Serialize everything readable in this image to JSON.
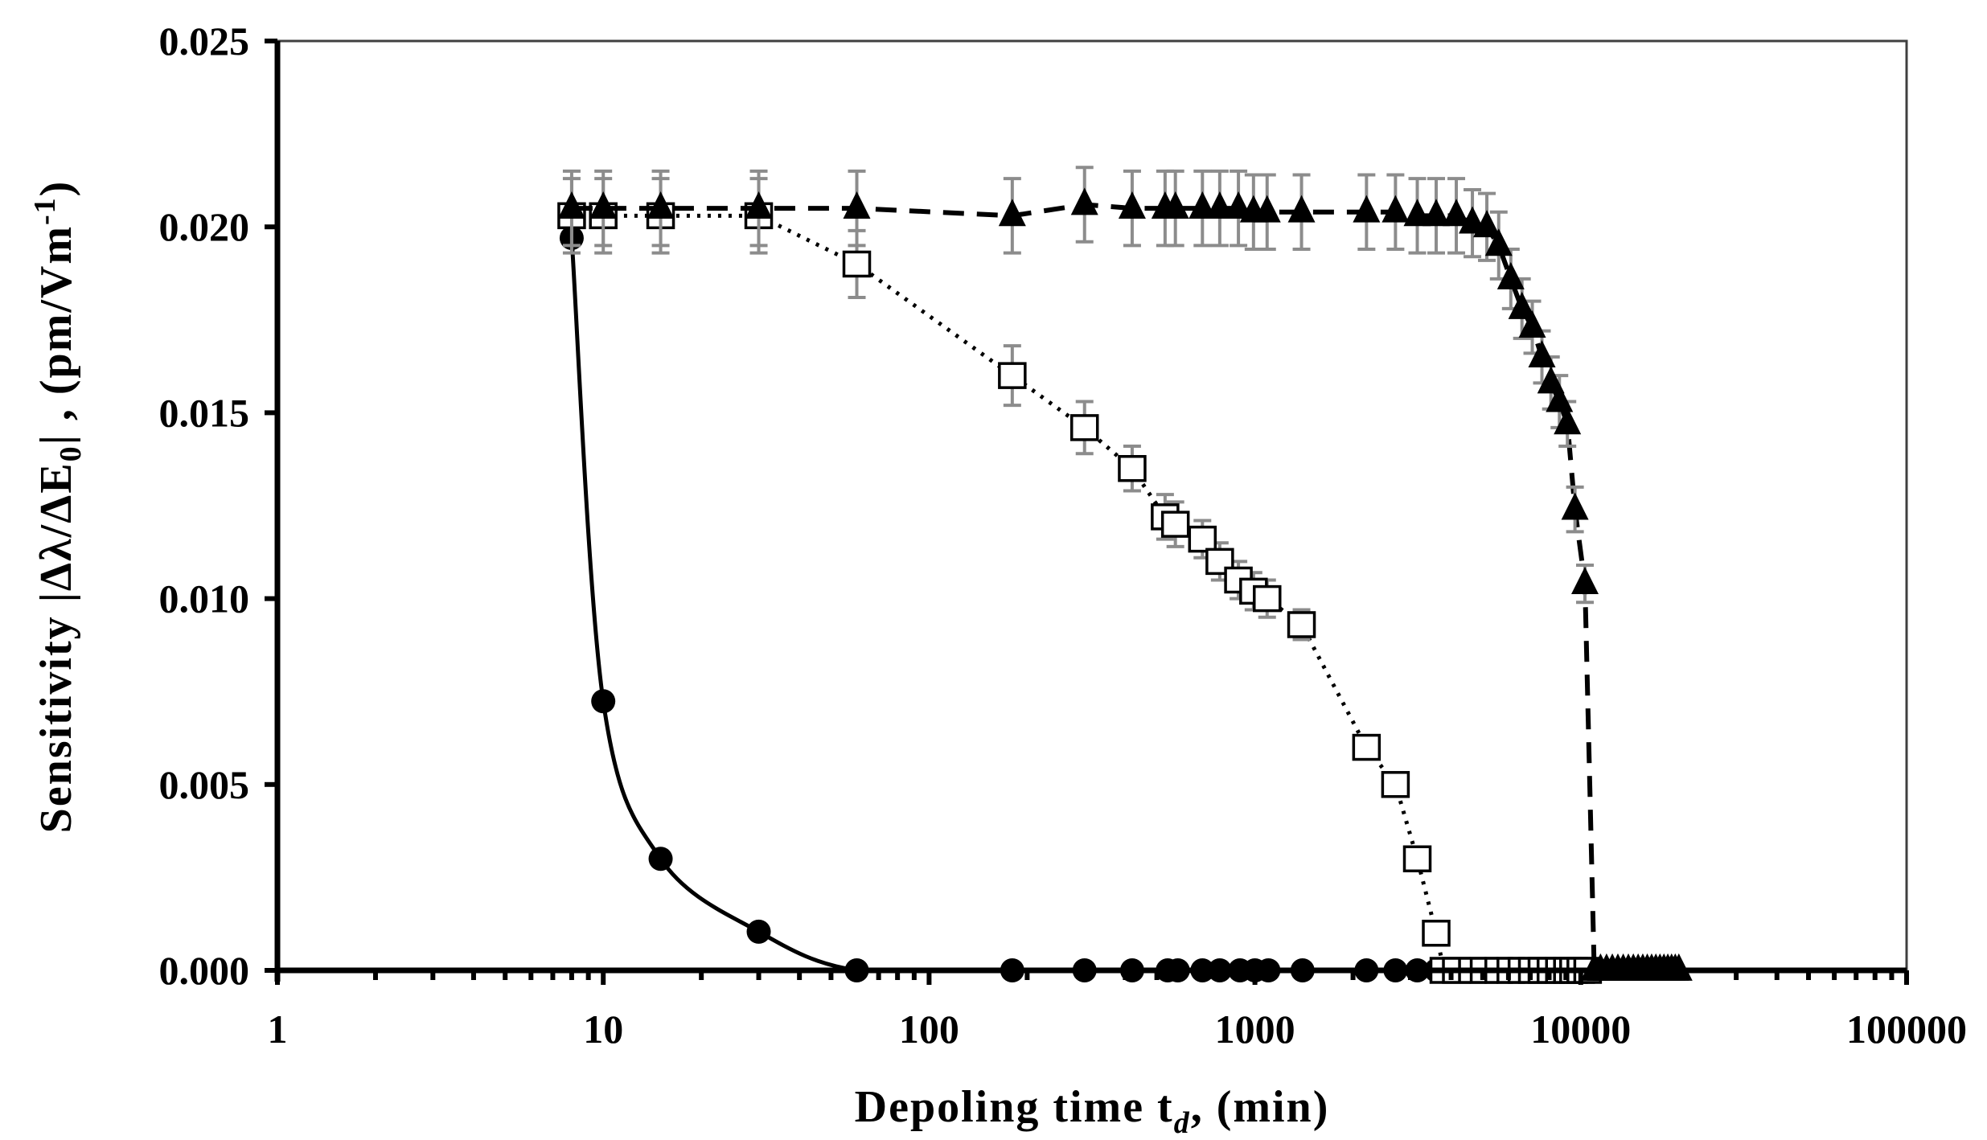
{
  "chart_data": {
    "type": "scatter",
    "title": "",
    "xlabel": "Depoling time t_d, (min)",
    "ylabel": "Sensitivity |Δλ/ΔE0| , (pm/Vm-1)",
    "xscale": "log",
    "xlim": [
      1,
      100000
    ],
    "ylim": [
      0,
      0.025
    ],
    "grid": false,
    "legend": "none",
    "x_ticks": [
      "1",
      "10",
      "100",
      "1000",
      "10000",
      "100000"
    ],
    "y_ticks": [
      "0.000",
      "0.005",
      "0.010",
      "0.015",
      "0.020",
      "0.025"
    ],
    "series": [
      {
        "name": "circles (solid line)",
        "marker": "filled-circle",
        "line": "solid",
        "error_bars": false,
        "points": [
          [
            8,
            0.0197
          ],
          [
            10,
            0.00724
          ],
          [
            15,
            0.003
          ],
          [
            30,
            0.00104
          ],
          [
            60,
            0.0
          ],
          [
            180,
            0.0
          ],
          [
            300,
            0.0
          ],
          [
            420,
            0.0
          ],
          [
            540,
            0.0
          ],
          [
            580,
            0.0
          ],
          [
            690,
            0.0
          ],
          [
            780,
            0.0
          ],
          [
            900,
            0.0
          ],
          [
            1000,
            0.0
          ],
          [
            1100,
            0.0
          ],
          [
            1400,
            0.0
          ],
          [
            2200,
            0.0
          ],
          [
            2700,
            0.0
          ],
          [
            3150,
            0.0
          ],
          [
            3600,
            0.0
          ]
        ]
      },
      {
        "name": "open squares (dotted line)",
        "marker": "open-square",
        "line": "dotted",
        "error_bars": true,
        "points": [
          [
            8,
            0.0203,
            0.001
          ],
          [
            10,
            0.0203,
            0.001
          ],
          [
            15,
            0.0203,
            0.001
          ],
          [
            30,
            0.0203,
            0.001
          ],
          [
            60,
            0.019,
            0.0009
          ],
          [
            180,
            0.016,
            0.0008
          ],
          [
            300,
            0.0146,
            0.0007
          ],
          [
            420,
            0.0135,
            0.0006
          ],
          [
            530,
            0.0122,
            0.0006
          ],
          [
            570,
            0.012,
            0.0006
          ],
          [
            690,
            0.0116,
            0.0005
          ],
          [
            780,
            0.011,
            0.0005
          ],
          [
            890,
            0.0105,
            0.0005
          ],
          [
            990,
            0.0102,
            0.0005
          ],
          [
            1090,
            0.01,
            0.0005
          ],
          [
            1390,
            0.0093,
            0.0004
          ],
          [
            2200,
            0.006,
            0.0
          ],
          [
            2700,
            0.005,
            0.0
          ],
          [
            3150,
            0.003,
            0.0
          ],
          [
            3600,
            0.001,
            0.0
          ],
          [
            3800,
            0.0,
            0.0
          ],
          [
            4150,
            0.0,
            0.0
          ],
          [
            4650,
            0.0,
            0.0
          ],
          [
            5050,
            0.0,
            0.0
          ],
          [
            5600,
            0.0,
            0.0
          ],
          [
            6100,
            0.0,
            0.0
          ],
          [
            6600,
            0.0,
            0.0
          ],
          [
            7100,
            0.0,
            0.0
          ],
          [
            7600,
            0.0,
            0.0
          ],
          [
            8100,
            0.0,
            0.0
          ],
          [
            8600,
            0.0,
            0.0
          ],
          [
            9100,
            0.0,
            0.0
          ],
          [
            9500,
            0.0,
            0.0
          ],
          [
            10000,
            0.0,
            0.0
          ],
          [
            10500,
            0.0,
            0.0
          ]
        ]
      },
      {
        "name": "filled triangles (dashed line)",
        "marker": "filled-triangle",
        "line": "dashed",
        "error_bars": true,
        "points": [
          [
            8,
            0.0205,
            0.001
          ],
          [
            10,
            0.0205,
            0.001
          ],
          [
            15,
            0.0205,
            0.001
          ],
          [
            30,
            0.0205,
            0.001
          ],
          [
            60,
            0.0205,
            0.001
          ],
          [
            180,
            0.0203,
            0.001
          ],
          [
            300,
            0.0206,
            0.001
          ],
          [
            420,
            0.0205,
            0.001
          ],
          [
            530,
            0.0205,
            0.001
          ],
          [
            570,
            0.0205,
            0.001
          ],
          [
            690,
            0.0205,
            0.001
          ],
          [
            780,
            0.0205,
            0.001
          ],
          [
            890,
            0.0205,
            0.001
          ],
          [
            990,
            0.0204,
            0.001
          ],
          [
            1090,
            0.0204,
            0.001
          ],
          [
            1390,
            0.0204,
            0.001
          ],
          [
            2200,
            0.0204,
            0.001
          ],
          [
            2700,
            0.0204,
            0.001
          ],
          [
            3150,
            0.0203,
            0.001
          ],
          [
            3600,
            0.0203,
            0.001
          ],
          [
            4150,
            0.0203,
            0.001
          ],
          [
            4650,
            0.0201,
            0.0009
          ],
          [
            5150,
            0.02,
            0.0009
          ],
          [
            5600,
            0.0195,
            0.0009
          ],
          [
            6100,
            0.0186,
            0.0008
          ],
          [
            6600,
            0.0178,
            0.0008
          ],
          [
            7100,
            0.0173,
            0.0007
          ],
          [
            7600,
            0.0165,
            0.0007
          ],
          [
            8100,
            0.0158,
            0.0007
          ],
          [
            8600,
            0.0153,
            0.0007
          ],
          [
            9100,
            0.0147,
            0.0006
          ],
          [
            9600,
            0.0124,
            0.0006
          ],
          [
            10300,
            0.0104,
            0.0005
          ],
          [
            11000,
            0.0,
            0.0
          ],
          [
            11500,
            0.0,
            0.0
          ],
          [
            12000,
            0.0,
            0.0
          ],
          [
            12500,
            0.0,
            0.0
          ],
          [
            13000,
            0.0,
            0.0
          ],
          [
            13500,
            0.0,
            0.0
          ],
          [
            14000,
            0.0,
            0.0
          ],
          [
            14500,
            0.0,
            0.0
          ],
          [
            15000,
            0.0,
            0.0
          ],
          [
            15500,
            0.0,
            0.0
          ],
          [
            16000,
            0.0,
            0.0
          ],
          [
            16500,
            0.0,
            0.0
          ],
          [
            17000,
            0.0,
            0.0
          ],
          [
            17500,
            0.0,
            0.0
          ],
          [
            18000,
            0.0,
            0.0
          ],
          [
            18500,
            0.0,
            0.0
          ],
          [
            19000,
            0.0,
            0.0
          ],
          [
            19500,
            0.0,
            0.0
          ],
          [
            20000,
            0.0,
            0.0
          ]
        ]
      }
    ]
  },
  "axes": {
    "x_title": "Depoling time t",
    "x_title_sub": "d",
    "x_title_suffix": ", (min)",
    "y_title_prefix": "Sensitivity |Δλ/ΔE",
    "y_title_sub": "0",
    "y_title_mid": "| , (pm/Vm",
    "y_title_sup": "-1",
    "y_title_suffix": ")"
  },
  "colors": {
    "marker": "#000000",
    "error_bar": "#8c8c8c",
    "frame": "#404040",
    "axis": "#000000"
  }
}
